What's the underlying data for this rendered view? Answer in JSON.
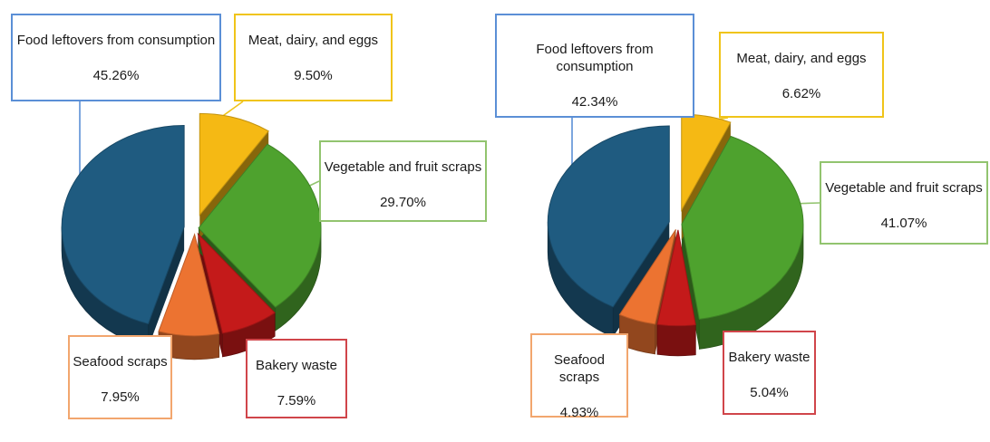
{
  "chart_data": [
    {
      "type": "pie",
      "categories": [
        "Food leftovers from consumption",
        "Meat, dairy, and eggs",
        "Vegetable and fruit scraps",
        "Bakery waste",
        "Seafood scraps"
      ],
      "values": [
        45.26,
        9.5,
        29.7,
        7.59,
        7.95
      ],
      "labels": [
        "45.26%",
        "9.50%",
        "29.70%",
        "7.59%",
        "7.95%"
      ],
      "colors": [
        "#1f5b80",
        "#f5b914",
        "#4ea22e",
        "#c41a1a",
        "#ec7331"
      ]
    },
    {
      "type": "pie",
      "categories": [
        "Food leftovers from consumption",
        "Meat, dairy, and eggs",
        "Vegetable and fruit scraps",
        "Bakery waste",
        "Seafood scraps"
      ],
      "values": [
        42.34,
        6.62,
        41.07,
        5.04,
        4.93
      ],
      "labels": [
        "42.34%",
        "6.62%",
        "41.07%",
        "5.04%",
        "4.93%"
      ],
      "colors": [
        "#1f5b80",
        "#f5b914",
        "#4ea22e",
        "#c41a1a",
        "#ec7331"
      ]
    }
  ]
}
